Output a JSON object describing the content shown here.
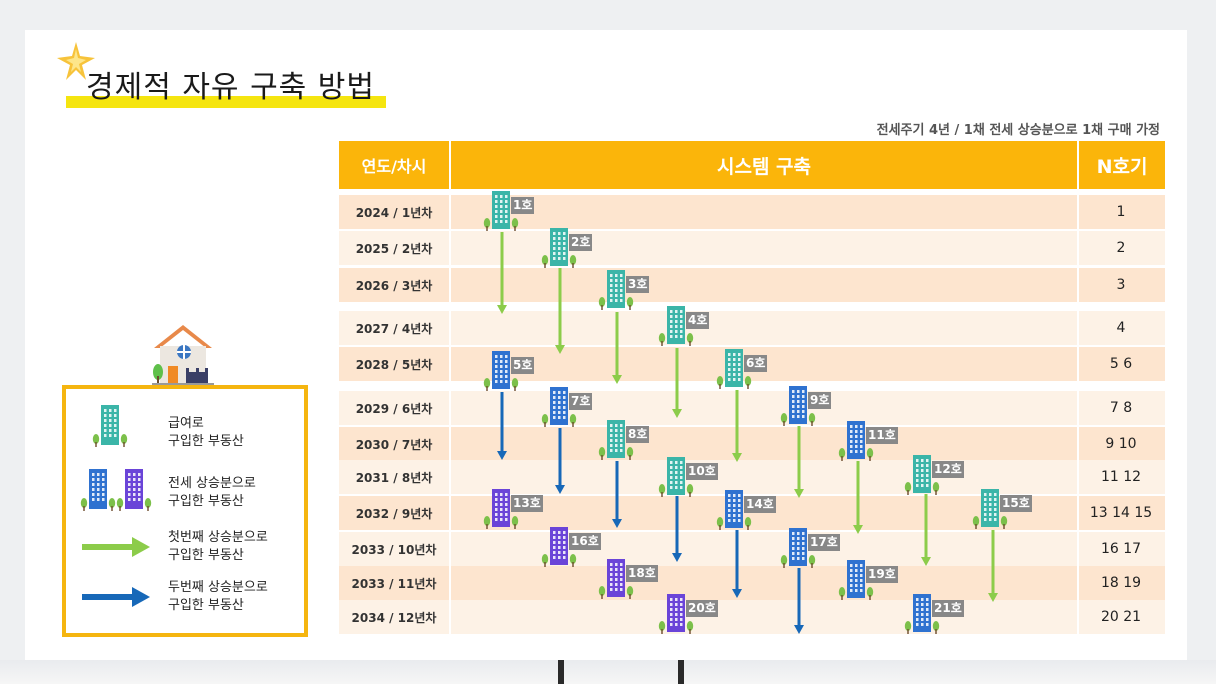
{
  "title": "경제적 자유 구축 방법",
  "subtitle": "전세주기 4년 / 1채 전세 상승분으로 1채 구매 가정",
  "table": {
    "header_year": "연도/차시",
    "header_system": "시스템 구축",
    "header_n": "N호기",
    "rows": [
      {
        "year": "2024 / 1년차",
        "n": "1"
      },
      {
        "year": "2025 / 2년차",
        "n": "2"
      },
      {
        "year": "2026 / 3년차",
        "n": "3"
      },
      {
        "year": "2027 / 4년차",
        "n": "4"
      },
      {
        "year": "2028 / 5년차",
        "n": "5 6"
      },
      {
        "year": "2029 / 6년차",
        "n": "7 8"
      },
      {
        "year": "2030 / 7년차",
        "n": "9 10"
      },
      {
        "year": "2031 / 8년차",
        "n": "11 12"
      },
      {
        "year": "2032 / 9년차",
        "n": "13 14 15"
      },
      {
        "year": "2033 / 10년차",
        "n": "16 17"
      },
      {
        "year": "2033 / 11년차",
        "n": "18 19"
      },
      {
        "year": "2034 / 12년차",
        "n": "20  21"
      }
    ]
  },
  "units": [
    {
      "label": "1호",
      "type": "salary"
    },
    {
      "label": "2호",
      "type": "salary"
    },
    {
      "label": "3호",
      "type": "salary"
    },
    {
      "label": "4호",
      "type": "salary"
    },
    {
      "label": "5호",
      "type": "deposit"
    },
    {
      "label": "6호",
      "type": "salary"
    },
    {
      "label": "7호",
      "type": "deposit"
    },
    {
      "label": "8호",
      "type": "salary"
    },
    {
      "label": "9호",
      "type": "deposit"
    },
    {
      "label": "10호",
      "type": "salary"
    },
    {
      "label": "11호",
      "type": "deposit"
    },
    {
      "label": "12호",
      "type": "salary"
    },
    {
      "label": "13호",
      "type": "deposit2"
    },
    {
      "label": "14호",
      "type": "deposit"
    },
    {
      "label": "15호",
      "type": "salary"
    },
    {
      "label": "16호",
      "type": "deposit2"
    },
    {
      "label": "17호",
      "type": "deposit"
    },
    {
      "label": "18호",
      "type": "deposit2"
    },
    {
      "label": "19호",
      "type": "deposit"
    },
    {
      "label": "20호",
      "type": "deposit2"
    },
    {
      "label": "21호",
      "type": "deposit"
    }
  ],
  "legend": {
    "salary_line1": "급여로",
    "salary_line2": "구입한 부동산",
    "deposit_line1": "전세 상승분으로",
    "deposit_line2": "구입한 부동산",
    "first_line1": "첫번째 상승분으로",
    "first_line2": "구입한 부동산",
    "second_line1": "두번째 상승분으로",
    "second_line2": "구입한 부동산"
  },
  "colors": {
    "header": "#fbb50a",
    "highlight": "#f5e50f",
    "salary_building": "#3bb5a8",
    "deposit_building": "#2f72d0",
    "deposit2_building": "#6a44d8",
    "first_arrow": "#8ccc4a",
    "second_arrow": "#1768b8"
  },
  "icons": [
    "sparkle-star-icon",
    "house-icon",
    "building-icon",
    "green-arrow-icon",
    "blue-arrow-icon"
  ]
}
